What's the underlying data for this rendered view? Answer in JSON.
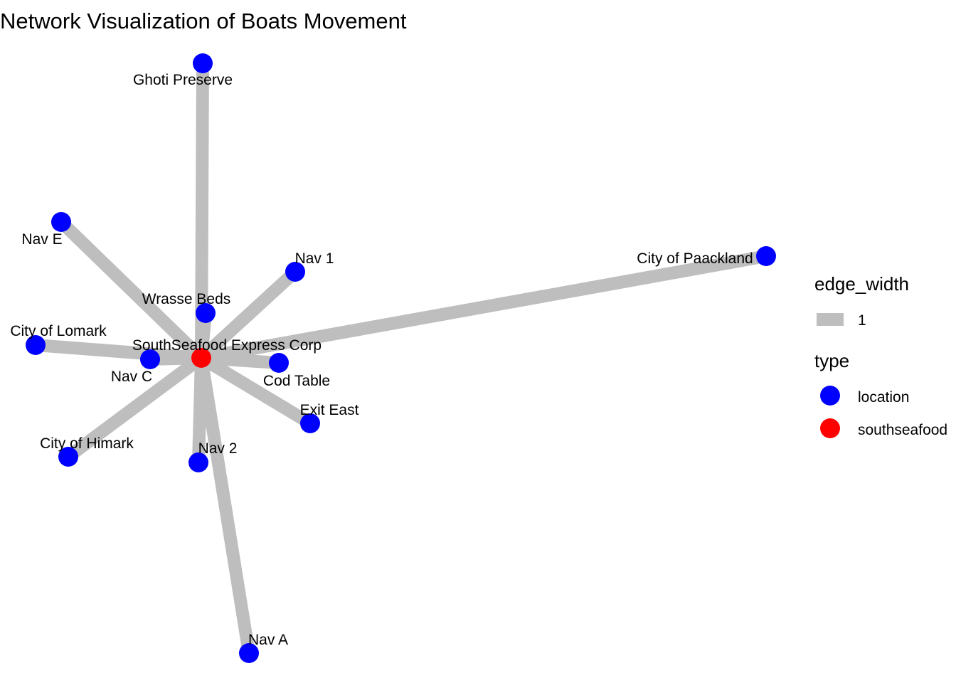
{
  "title": "Network Visualization of Boats Movement",
  "colors": {
    "edge": "#bebebe",
    "location": "#0000ff",
    "southseafood": "#ff0000",
    "background": "#ffffff"
  },
  "nodes": [
    {
      "id": "southseafood",
      "label": "SouthSeafood Express Corp",
      "type": "southseafood"
    },
    {
      "id": "ghoti",
      "label": "Ghoti Preserve",
      "type": "location"
    },
    {
      "id": "nave",
      "label": "Nav E",
      "type": "location"
    },
    {
      "id": "nav1",
      "label": "Nav 1",
      "type": "location"
    },
    {
      "id": "paackland",
      "label": "City of Paackland",
      "type": "location"
    },
    {
      "id": "wrasse",
      "label": "Wrasse Beds",
      "type": "location"
    },
    {
      "id": "lomark",
      "label": "City of Lomark",
      "type": "location"
    },
    {
      "id": "navc",
      "label": "Nav C",
      "type": "location"
    },
    {
      "id": "cod",
      "label": "Cod Table",
      "type": "location"
    },
    {
      "id": "exit",
      "label": "Exit East",
      "type": "location"
    },
    {
      "id": "himark",
      "label": "City of Himark",
      "type": "location"
    },
    {
      "id": "nav2",
      "label": "Nav 2",
      "type": "location"
    },
    {
      "id": "nava",
      "label": "Nav A",
      "type": "location"
    }
  ],
  "edges": [
    {
      "source": "southseafood",
      "target": "ghoti",
      "edge_width": 1
    },
    {
      "source": "southseafood",
      "target": "nave",
      "edge_width": 1
    },
    {
      "source": "southseafood",
      "target": "nav1",
      "edge_width": 1
    },
    {
      "source": "southseafood",
      "target": "paackland",
      "edge_width": 1
    },
    {
      "source": "southseafood",
      "target": "wrasse",
      "edge_width": 1
    },
    {
      "source": "southseafood",
      "target": "lomark",
      "edge_width": 1
    },
    {
      "source": "southseafood",
      "target": "navc",
      "edge_width": 1
    },
    {
      "source": "southseafood",
      "target": "cod",
      "edge_width": 1
    },
    {
      "source": "southseafood",
      "target": "exit",
      "edge_width": 1
    },
    {
      "source": "southseafood",
      "target": "himark",
      "edge_width": 1
    },
    {
      "source": "southseafood",
      "target": "nav2",
      "edge_width": 1
    },
    {
      "source": "southseafood",
      "target": "nava",
      "edge_width": 1
    }
  ],
  "legend": {
    "edge_width": {
      "title": "edge_width",
      "items": [
        {
          "label": "1",
          "color": "#bebebe"
        }
      ]
    },
    "type": {
      "title": "type",
      "items": [
        {
          "label": "location",
          "color": "#0000ff"
        },
        {
          "label": "southseafood",
          "color": "#ff0000"
        }
      ]
    }
  }
}
